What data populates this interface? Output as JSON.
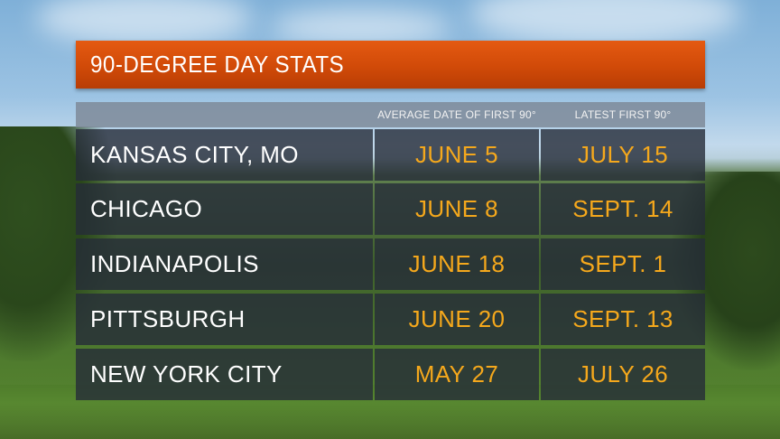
{
  "title": "90-DEGREE DAY STATS",
  "columns": {
    "average": "AVERAGE DATE OF FIRST 90°",
    "latest": "LATEST FIRST 90°"
  },
  "rows": [
    {
      "city": "KANSAS CITY, MO",
      "average": "JUNE 5",
      "latest": "JULY 15"
    },
    {
      "city": "CHICAGO",
      "average": "JUNE 8",
      "latest": "SEPT. 14"
    },
    {
      "city": "INDIANAPOLIS",
      "average": "JUNE 18",
      "latest": "SEPT. 1"
    },
    {
      "city": "PITTSBURGH",
      "average": "JUNE 20",
      "latest": "SEPT. 13"
    },
    {
      "city": "NEW YORK CITY",
      "average": "MAY 27",
      "latest": "JULY 26"
    }
  ],
  "colors": {
    "title_bar": "#d14a08",
    "value_text": "#f5a81c",
    "row_background": "#262c38",
    "header_background": "#7d8796"
  }
}
